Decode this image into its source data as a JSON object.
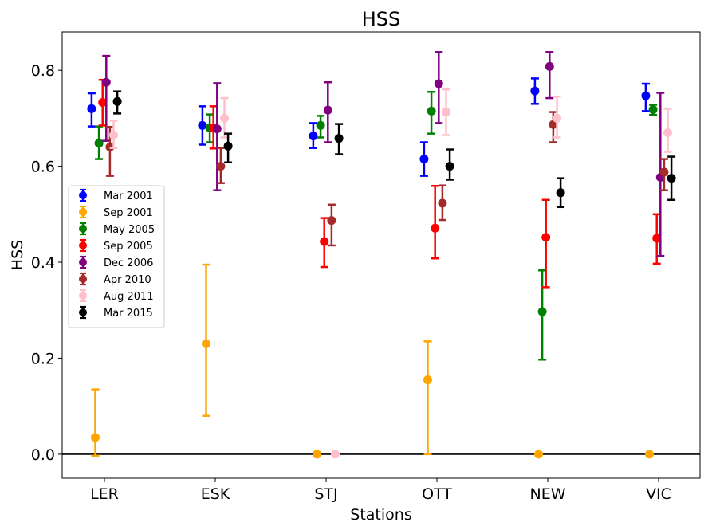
{
  "chart_data": {
    "type": "scatter",
    "title": "HSS",
    "xlabel": "Stations",
    "ylabel": "HSS",
    "categories": [
      "LER",
      "ESK",
      "STJ",
      "OTT",
      "NEW",
      "VIC"
    ],
    "ylim": [
      -0.05,
      0.88
    ],
    "yticks": [
      "0.0",
      "0.2",
      "0.4",
      "0.6",
      "0.8"
    ],
    "yticks_values": [
      0.0,
      0.2,
      0.4,
      0.6,
      0.8
    ],
    "reference_line": 0.0,
    "legend_position": "center-left",
    "grid": false,
    "series": [
      {
        "name": "Mar 2001",
        "color": "#0000ff",
        "values": [
          0.72,
          0.685,
          0.663,
          0.615,
          0.757,
          0.747
        ],
        "lower": [
          0.683,
          0.645,
          0.638,
          0.58,
          0.73,
          0.715
        ],
        "upper": [
          0.752,
          0.725,
          0.69,
          0.65,
          0.783,
          0.772
        ]
      },
      {
        "name": "Sep 2001",
        "color": "#ffa500",
        "values": [
          0.035,
          0.23,
          0.0,
          0.155,
          0.0,
          0.0
        ],
        "lower": [
          -0.003,
          0.08,
          0.0,
          0.0,
          0.0,
          0.0
        ],
        "upper": [
          0.135,
          0.395,
          0.0,
          0.235,
          0.0,
          0.0
        ]
      },
      {
        "name": "May 2005",
        "color": "#008000",
        "values": [
          0.648,
          0.68,
          0.685,
          0.715,
          0.297,
          0.718
        ],
        "lower": [
          0.615,
          0.65,
          0.66,
          0.668,
          0.197,
          0.707
        ],
        "upper": [
          0.683,
          0.708,
          0.705,
          0.755,
          0.383,
          0.728
        ]
      },
      {
        "name": "Sep 2005",
        "color": "#ff0000",
        "values": [
          0.733,
          0.68,
          0.443,
          0.471,
          0.452,
          0.45
        ],
        "lower": [
          0.685,
          0.637,
          0.39,
          0.408,
          0.348,
          0.397
        ],
        "upper": [
          0.78,
          0.725,
          0.492,
          0.559,
          0.53,
          0.5
        ]
      },
      {
        "name": "Dec 2006",
        "color": "#800080",
        "values": [
          0.775,
          0.678,
          0.717,
          0.772,
          0.808,
          0.577
        ],
        "lower": [
          0.653,
          0.55,
          0.65,
          0.69,
          0.742,
          0.413
        ],
        "upper": [
          0.83,
          0.773,
          0.775,
          0.838,
          0.838,
          0.753
        ]
      },
      {
        "name": "Apr 2010",
        "color": "#a52a2a",
        "values": [
          0.64,
          0.6,
          0.487,
          0.523,
          0.687,
          0.588
        ],
        "lower": [
          0.58,
          0.565,
          0.435,
          0.488,
          0.65,
          0.55
        ],
        "upper": [
          0.682,
          0.638,
          0.52,
          0.56,
          0.713,
          0.615
        ]
      },
      {
        "name": "Aug 2011",
        "color": "#ffc0cb",
        "values": [
          0.665,
          0.7,
          0.0,
          0.713,
          0.7,
          0.67
        ],
        "lower": [
          0.638,
          0.66,
          0.0,
          0.665,
          0.66,
          0.63
        ],
        "upper": [
          0.695,
          0.742,
          0.0,
          0.76,
          0.745,
          0.72
        ]
      },
      {
        "name": "Mar 2015",
        "color": "#000000",
        "values": [
          0.735,
          0.642,
          0.658,
          0.6,
          0.545,
          0.575
        ],
        "lower": [
          0.71,
          0.608,
          0.625,
          0.572,
          0.515,
          0.53
        ],
        "upper": [
          0.756,
          0.668,
          0.688,
          0.635,
          0.575,
          0.62
        ]
      }
    ]
  }
}
